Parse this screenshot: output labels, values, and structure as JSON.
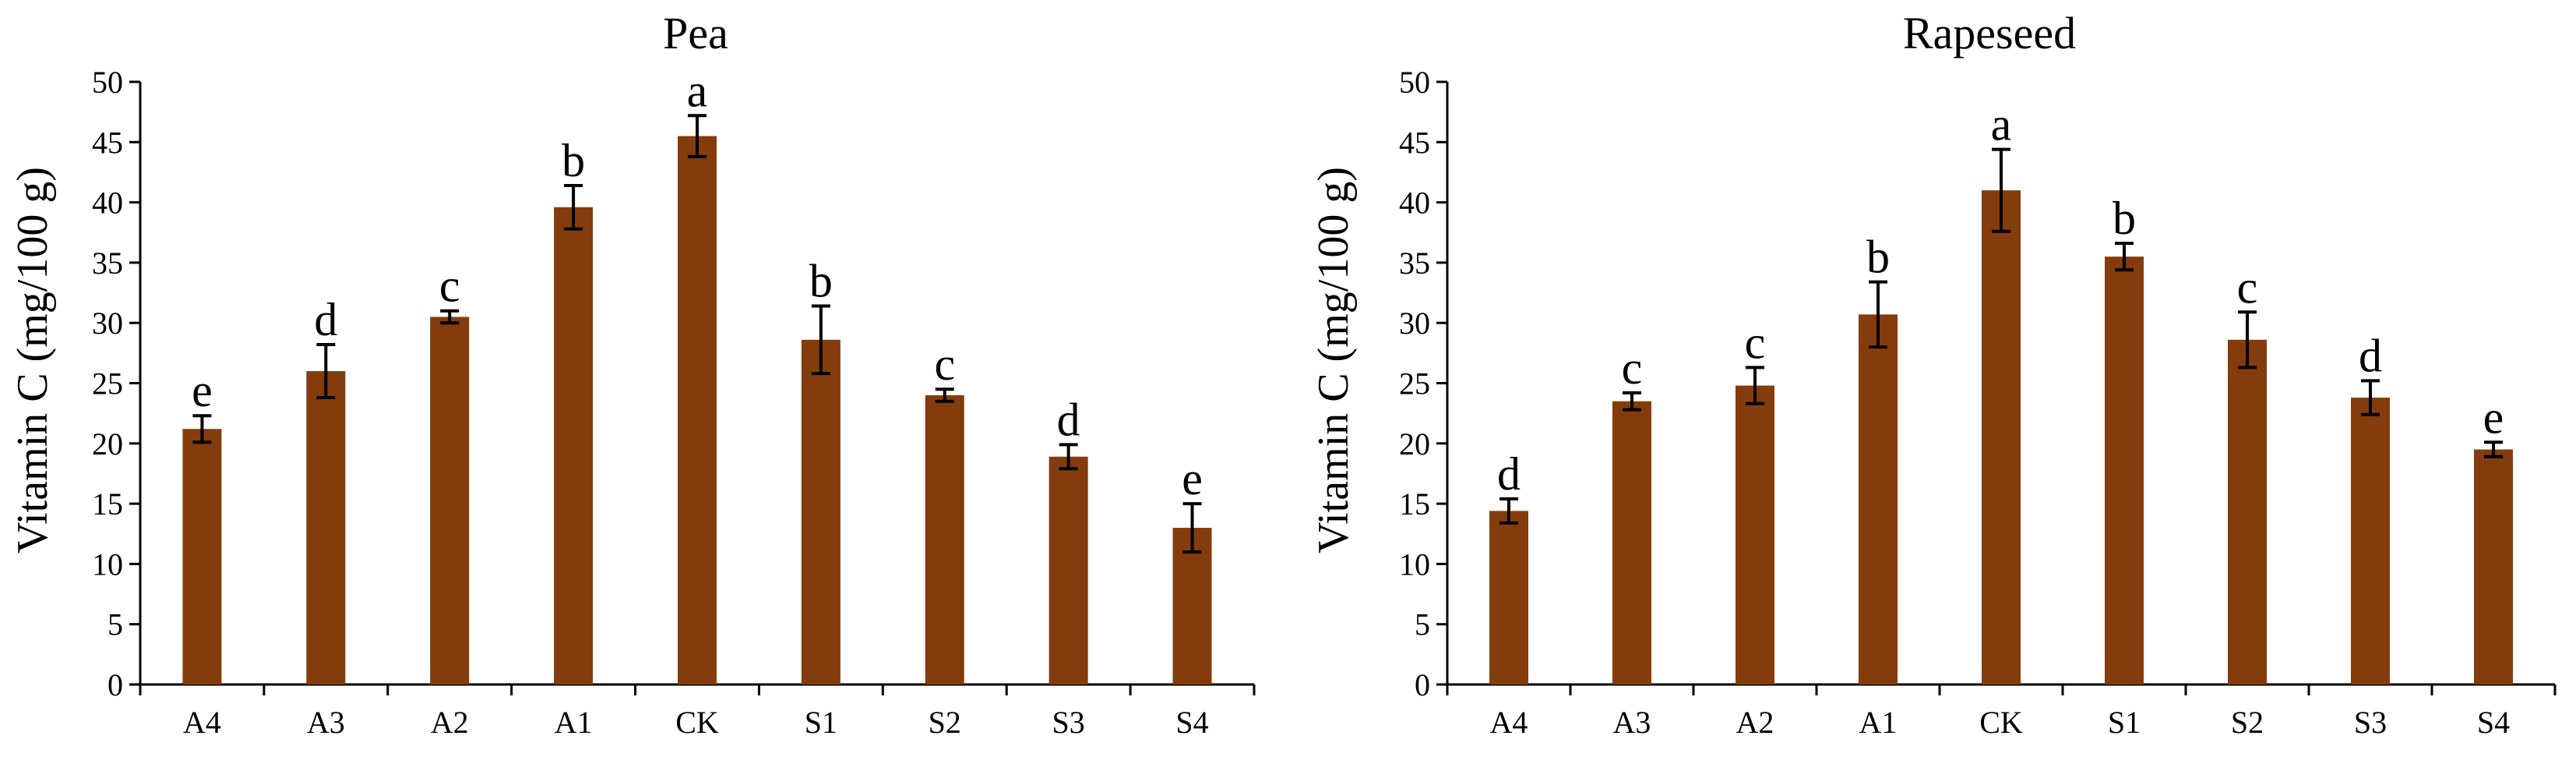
{
  "chart_data": [
    {
      "type": "bar",
      "title": "Pea",
      "ylabel": "Vitamin C (mg/100 g)",
      "xlabel": "",
      "ylim": [
        0,
        50
      ],
      "yticks": [
        0,
        5,
        10,
        15,
        20,
        25,
        30,
        35,
        40,
        45,
        50
      ],
      "categories": [
        "A4",
        "A3",
        "A2",
        "A1",
        "CK",
        "S1",
        "S2",
        "S3",
        "S4"
      ],
      "values": [
        21.2,
        26.0,
        30.5,
        39.6,
        45.5,
        28.6,
        24.0,
        18.9,
        13.0
      ],
      "errors": [
        1.1,
        2.2,
        0.5,
        1.8,
        1.7,
        2.8,
        0.5,
        1.0,
        2.0
      ],
      "letters": [
        "e",
        "d",
        "c",
        "b",
        "a",
        "b",
        "c",
        "d",
        "e"
      ],
      "bar_color": "#843C0C",
      "grid": false,
      "legend": "none"
    },
    {
      "type": "bar",
      "title": "Rapeseed",
      "ylabel": "Vitamin C (mg/100 g)",
      "xlabel": "",
      "ylim": [
        0,
        50
      ],
      "yticks": [
        0,
        5,
        10,
        15,
        20,
        25,
        30,
        35,
        40,
        45,
        50
      ],
      "categories": [
        "A4",
        "A3",
        "A2",
        "A1",
        "CK",
        "S1",
        "S2",
        "S3",
        "S4"
      ],
      "values": [
        14.4,
        23.5,
        24.8,
        30.7,
        41.0,
        35.5,
        28.6,
        23.8,
        19.5
      ],
      "errors": [
        1.0,
        0.7,
        1.5,
        2.7,
        3.4,
        1.1,
        2.3,
        1.4,
        0.6
      ],
      "letters": [
        "d",
        "c",
        "c",
        "b",
        "a",
        "b",
        "c",
        "d",
        "e"
      ],
      "bar_color": "#843C0C",
      "grid": false,
      "legend": "none"
    }
  ]
}
